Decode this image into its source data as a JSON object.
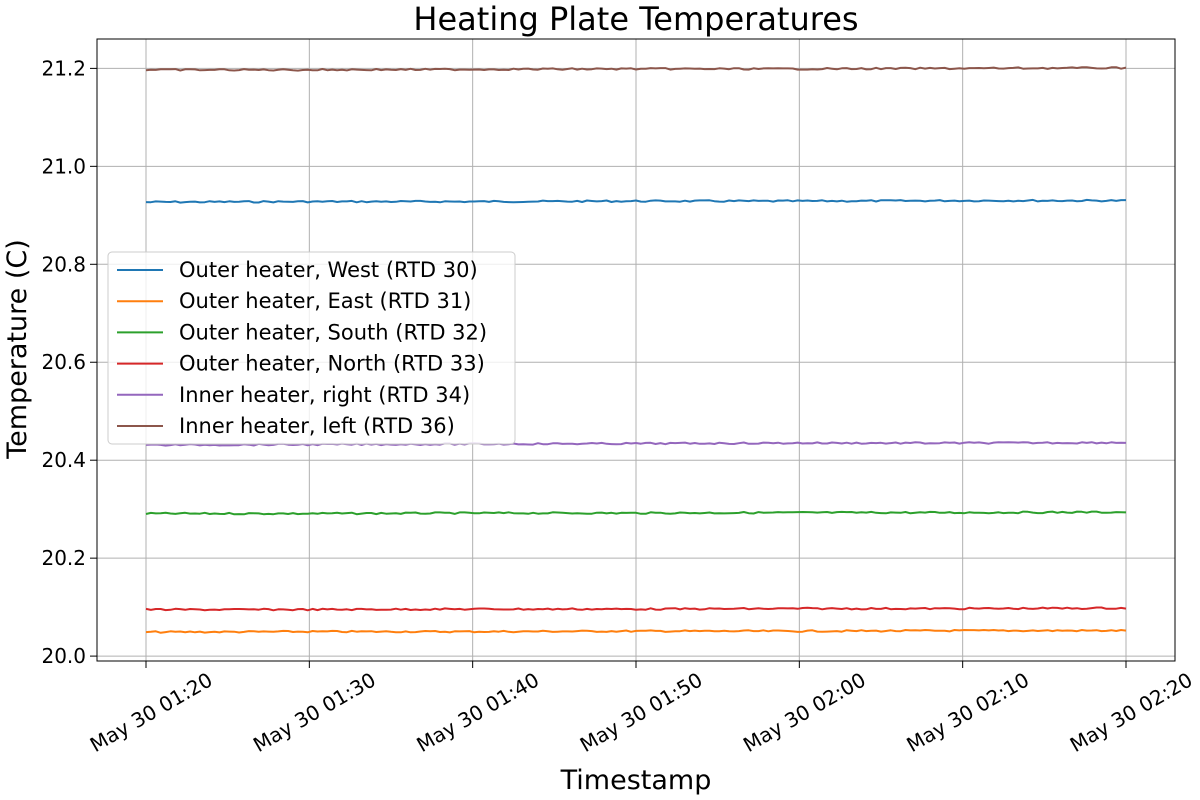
{
  "chart_data": {
    "type": "line",
    "title": "Heating Plate Temperatures",
    "xlabel": "Timestamp",
    "ylabel": "Temperature (C)",
    "x": [
      "May 30 01:20",
      "May 30 01:30",
      "May 30 01:40",
      "May 30 01:50",
      "May 30 02:00",
      "May 30 02:10",
      "May 30 02:20"
    ],
    "xlim": [
      "May 30 01:17",
      "May 30 02:23"
    ],
    "ylim": [
      19.99,
      21.26
    ],
    "yticks": [
      20.0,
      20.2,
      20.4,
      20.6,
      20.8,
      21.0,
      21.2
    ],
    "ytick_labels": [
      "20.0",
      "20.2",
      "20.4",
      "20.6",
      "20.8",
      "21.0",
      "21.2"
    ],
    "grid": true,
    "legend_position": "center-left",
    "series": [
      {
        "name": "Outer heater, West (RTD 30)",
        "color": "#1f77b4",
        "values": [
          20.927,
          20.928,
          20.928,
          20.929,
          20.929,
          20.93,
          20.93
        ]
      },
      {
        "name": "Outer heater, East (RTD 31)",
        "color": "#ff7f0e",
        "values": [
          20.049,
          20.05,
          20.05,
          20.051,
          20.051,
          20.052,
          20.052
        ]
      },
      {
        "name": "Outer heater, South (RTD 32)",
        "color": "#2ca02c",
        "values": [
          20.291,
          20.291,
          20.292,
          20.292,
          20.293,
          20.293,
          20.294
        ]
      },
      {
        "name": "Outer heater, North (RTD 33)",
        "color": "#d62728",
        "values": [
          20.095,
          20.095,
          20.096,
          20.096,
          20.097,
          20.097,
          20.098
        ]
      },
      {
        "name": "Inner heater, right (RTD 34)",
        "color": "#9467bd",
        "values": [
          20.431,
          20.432,
          20.433,
          20.434,
          20.435,
          20.435,
          20.436
        ]
      },
      {
        "name": "Inner heater, left (RTD 36)",
        "color": "#8c564b",
        "values": [
          21.197,
          21.197,
          21.198,
          21.199,
          21.199,
          21.2,
          21.201
        ]
      }
    ]
  }
}
